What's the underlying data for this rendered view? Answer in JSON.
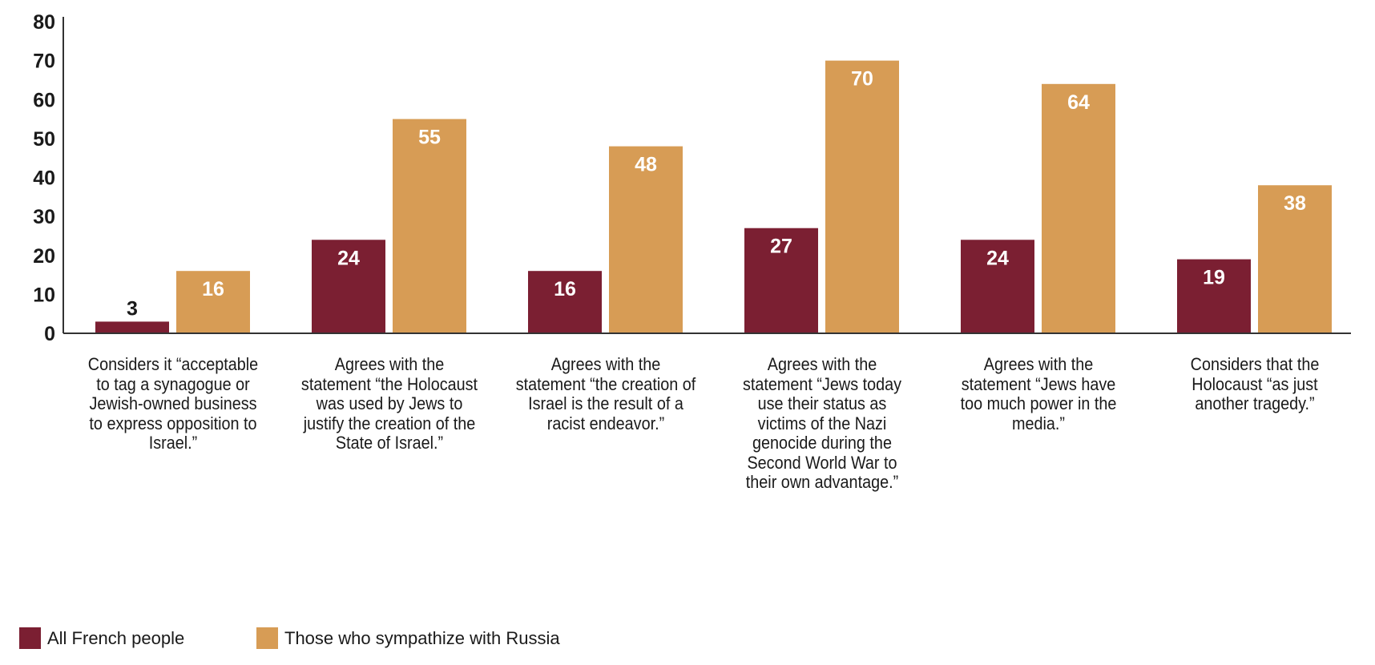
{
  "chart_data": {
    "type": "bar",
    "categories": [
      "Considers it “acceptable to tag a synagogue or Jewish-owned business to express opposition to Israel.”",
      "Agrees with the statement “the Holocaust was used by Jews to justify the creation of the State of Israel.”",
      "Agrees with the statement “the creation of Israel is the result of a racist endeavor.”",
      "Agrees with the statement “Jews today use their status as victims of the Nazi genocide during the Second World War to their own advantage.”",
      "Agrees with the statement “Jews have too much power in the media.”",
      "Considers that the Holocaust “as just another tragedy.”"
    ],
    "series": [
      {
        "name": "All French people",
        "color": "#7b1f32",
        "values": [
          3,
          24,
          16,
          27,
          24,
          19
        ]
      },
      {
        "name": "Those who sympathize with Russia",
        "color": "#d79c55",
        "values": [
          16,
          55,
          48,
          70,
          64,
          38
        ]
      }
    ],
    "ylim": [
      0,
      80
    ],
    "yticks": [
      0,
      10,
      20,
      30,
      40,
      50,
      60,
      70,
      80
    ],
    "grid": false,
    "legend_position": "bottom-left",
    "data_labels": true
  }
}
